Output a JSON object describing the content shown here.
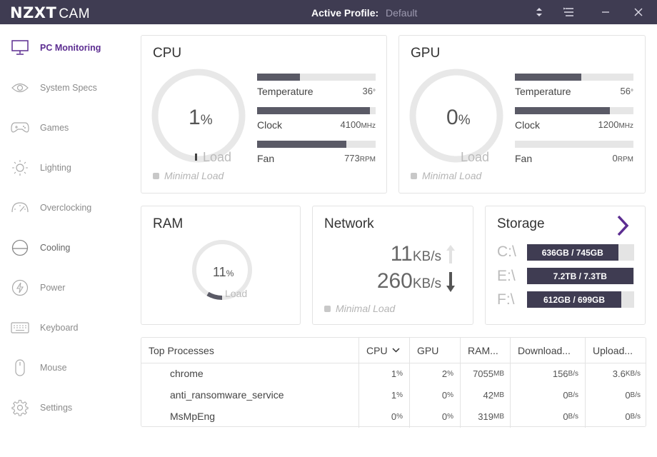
{
  "titlebar": {
    "logo_bold": "NZXT",
    "logo_light": "CAM",
    "active_profile_label": "Active Profile:",
    "active_profile_value": "Default"
  },
  "sidebar": {
    "items": [
      {
        "label": "PC Monitoring",
        "icon": "monitor-icon",
        "active": true
      },
      {
        "label": "System Specs",
        "icon": "eye-icon"
      },
      {
        "label": "Games",
        "icon": "gamepad-icon"
      },
      {
        "label": "Lighting",
        "icon": "sun-icon"
      },
      {
        "label": "Overclocking",
        "icon": "speedometer-icon"
      },
      {
        "label": "Cooling",
        "icon": "cooling-icon"
      },
      {
        "label": "Power",
        "icon": "lightning-icon"
      },
      {
        "label": "Keyboard",
        "icon": "keyboard-icon"
      },
      {
        "label": "Mouse",
        "icon": "mouse-icon"
      },
      {
        "label": "Settings",
        "icon": "gear-icon"
      }
    ]
  },
  "cpu": {
    "title": "CPU",
    "load_value": "1",
    "load_unit": "%",
    "load_fraction": 0.01,
    "load_label": "Load",
    "minimal_load": "Minimal Load",
    "stats": [
      {
        "label": "Temperature",
        "value": "36",
        "unit": "°",
        "fill": 0.36
      },
      {
        "label": "Clock",
        "value": "4100",
        "unit": "MHz",
        "fill": 0.95
      },
      {
        "label": "Fan",
        "value": "773",
        "unit": "RPM",
        "fill": 0.75
      }
    ]
  },
  "gpu": {
    "title": "GPU",
    "load_value": "0",
    "load_unit": "%",
    "load_fraction": 0.0,
    "load_label": "Load",
    "minimal_load": "Minimal Load",
    "stats": [
      {
        "label": "Temperature",
        "value": "56",
        "unit": "°",
        "fill": 0.56
      },
      {
        "label": "Clock",
        "value": "1200",
        "unit": "MHz",
        "fill": 0.8
      },
      {
        "label": "Fan",
        "value": "0",
        "unit": "RPM",
        "fill": 0.0
      }
    ]
  },
  "ram": {
    "title": "RAM",
    "load_value": "11",
    "load_unit": "%",
    "load_fraction": 0.11,
    "load_label": "Load"
  },
  "network": {
    "title": "Network",
    "upload_value": "11",
    "upload_unit": "KB/s",
    "download_value": "260",
    "download_unit": "KB/s",
    "minimal_load": "Minimal Load"
  },
  "storage": {
    "title": "Storage",
    "drives": [
      {
        "letter": "C:\\",
        "text": "636GB / 745GB",
        "fill": 0.85
      },
      {
        "letter": "E:\\",
        "text": "7.2TB / 7.3TB",
        "fill": 0.99
      },
      {
        "letter": "F:\\",
        "text": "612GB / 699GB",
        "fill": 0.88
      }
    ]
  },
  "processes": {
    "headers": [
      "Top Processes",
      "CPU",
      "GPU",
      "RAM...",
      "Download...",
      "Upload..."
    ],
    "rows": [
      {
        "name": "chrome",
        "cpu": "1",
        "cpu_u": "%",
        "gpu": "2",
        "gpu_u": "%",
        "ram": "7055",
        "ram_u": "MB",
        "down": "156",
        "down_u": "B/s",
        "up": "3.6",
        "up_u": "KB/s"
      },
      {
        "name": "anti_ransomware_service",
        "cpu": "1",
        "cpu_u": "%",
        "gpu": "0",
        "gpu_u": "%",
        "ram": "42",
        "ram_u": "MB",
        "down": "0",
        "down_u": "B/s",
        "up": "0",
        "up_u": "B/s"
      },
      {
        "name": "MsMpEng",
        "cpu": "0",
        "cpu_u": "%",
        "gpu": "0",
        "gpu_u": "%",
        "ram": "319",
        "ram_u": "MB",
        "down": "0",
        "down_u": "B/s",
        "up": "0",
        "up_u": "B/s"
      }
    ]
  },
  "colors": {
    "titlebar": "#3f3c52",
    "accent": "#5c2d91",
    "bar_fill": "#5a5a66",
    "drive_fill": "#3f3c52"
  }
}
